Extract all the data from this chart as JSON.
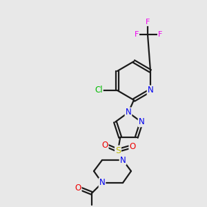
{
  "bg_color": "#e8e8e8",
  "bond_color": "#1a1a1a",
  "bond_width": 1.6,
  "atom_colors": {
    "N": "#0000ee",
    "O": "#ee0000",
    "S": "#bbbb00",
    "Cl": "#00bb00",
    "F": "#ee00ee",
    "C": "#1a1a1a"
  },
  "fig_width": 3.0,
  "fig_height": 3.0,
  "dpi": 100
}
